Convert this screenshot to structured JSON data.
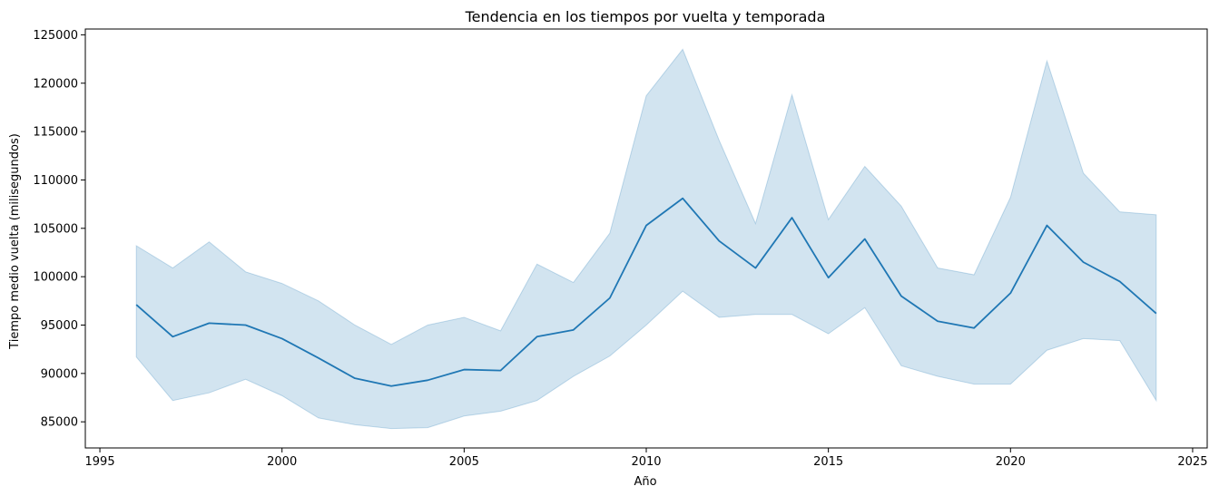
{
  "chart_data": {
    "type": "line",
    "title": "Tendencia en los tiempos por vuelta y temporada",
    "xlabel": "Año",
    "ylabel": "Tiempo medio vuelta (milisegundos)",
    "xlim": [
      1994.6,
      2025.4
    ],
    "ylim": [
      82300,
      125600
    ],
    "xticks": [
      1995,
      2000,
      2005,
      2010,
      2015,
      2020,
      2025
    ],
    "yticks": [
      85000,
      90000,
      95000,
      100000,
      105000,
      110000,
      115000,
      120000,
      125000
    ],
    "grid": false,
    "legend": "none",
    "series": [
      {
        "x": [
          1996,
          1997,
          1998,
          1999,
          2000,
          2001,
          2002,
          2003,
          2004,
          2005,
          2006,
          2007,
          2008,
          2009,
          2010,
          2011,
          2012,
          2013,
          2014,
          2015,
          2016,
          2017,
          2018,
          2019,
          2020,
          2021,
          2022,
          2023,
          2024
        ],
        "y": [
          97100,
          93800,
          95200,
          95000,
          93600,
          91600,
          89500,
          88700,
          89300,
          90400,
          90300,
          93800,
          94500,
          97800,
          105300,
          108100,
          103700,
          100900,
          106100,
          99900,
          103900,
          98000,
          95400,
          94700,
          98300,
          105300,
          101500,
          99500,
          96200
        ],
        "lower": [
          91700,
          87200,
          88000,
          89400,
          87700,
          85400,
          84700,
          84300,
          84400,
          85600,
          86100,
          87200,
          89700,
          91800,
          95000,
          98500,
          95800,
          96100,
          96100,
          94100,
          96800,
          90800,
          89700,
          88900,
          88900,
          92400,
          93600,
          93400,
          87200
        ],
        "upper": [
          103200,
          100900,
          103600,
          100500,
          99300,
          97500,
          95000,
          93000,
          95000,
          95800,
          94400,
          101300,
          99400,
          104500,
          118700,
          123500,
          114100,
          105500,
          118800,
          105900,
          111400,
          107300,
          100900,
          100200,
          108200,
          122300,
          110700,
          106700,
          106400
        ]
      }
    ],
    "colors": {
      "line": "#1f77b4",
      "band": "#1f77b4"
    }
  }
}
